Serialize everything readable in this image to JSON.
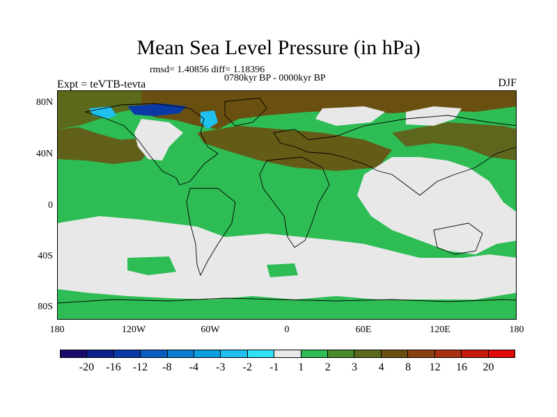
{
  "title": "Mean Sea Level Pressure (in hPa)",
  "stats": "rmsd= 1.40856 diff= 1.18396",
  "period": "0780kyr BP - 0000kyr BP",
  "experiment": "Expt = teVTB-tevta",
  "season": "DJF",
  "axes": {
    "y_ticks": [
      "80N",
      "40N",
      "0",
      "40S",
      "80S"
    ],
    "x_ticks": [
      "180",
      "120W",
      "60W",
      "0",
      "60E",
      "120E",
      "180"
    ]
  },
  "colorbar": {
    "colors": [
      "#1a0a6b",
      "#0a1f8c",
      "#0a3aa8",
      "#0a5cc0",
      "#0a7ed0",
      "#0aa0e0",
      "#20c0ee",
      "#30e0f5",
      "#e8e8e8",
      "#2ebd55",
      "#4a8a2a",
      "#5a6a1a",
      "#6a5010",
      "#8a4010",
      "#a83010",
      "#c81a0a",
      "#e00a0a"
    ],
    "labels": [
      "-20",
      "-16",
      "-12",
      "-8",
      "-4",
      "-3",
      "-2",
      "-1",
      "1",
      "2",
      "3",
      "4",
      "8",
      "12",
      "16",
      "20"
    ]
  },
  "fill_colors": {
    "ocean_base": "#2ebd55",
    "neutral": "#e8e8e8",
    "brown": "#6a5010",
    "olive": "#5a6a1a",
    "darkgreen": "#4a8a2a",
    "navy": "#0a3aa8",
    "sky": "#20c0ee"
  }
}
